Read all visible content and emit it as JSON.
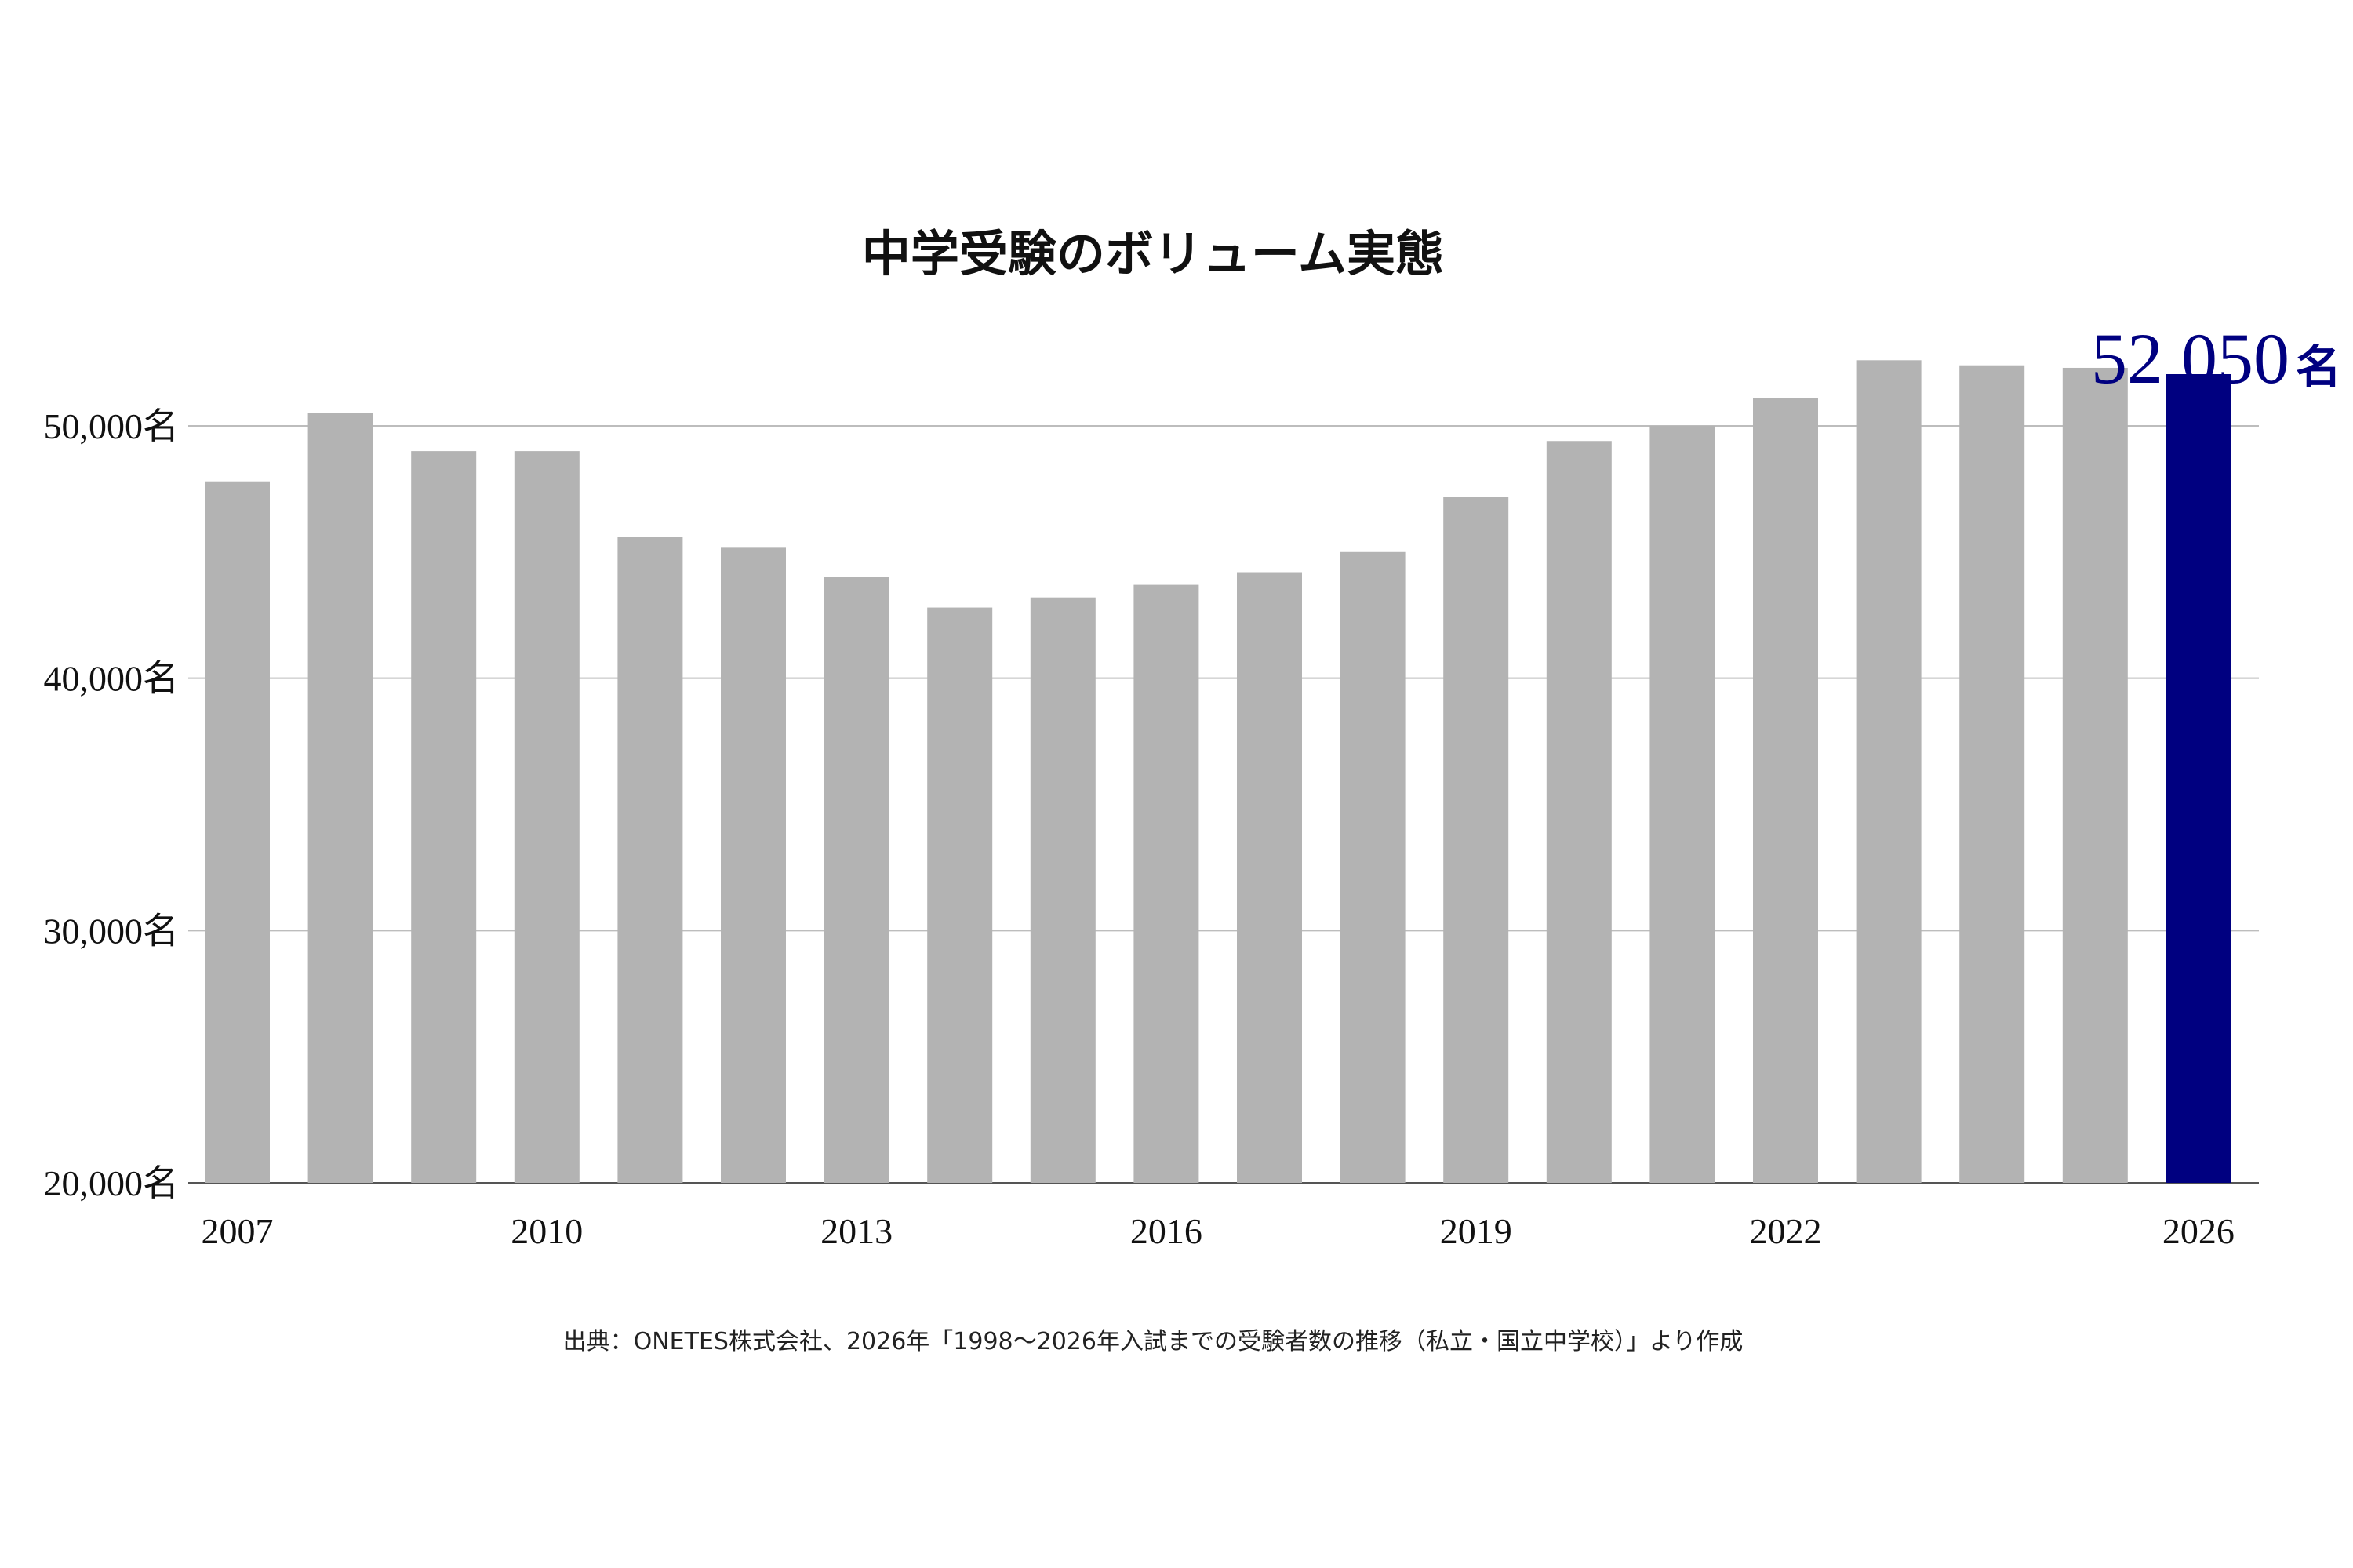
{
  "chart_data": {
    "type": "bar",
    "title": "中学受験のボリューム実態",
    "categories": [
      "2007",
      "2008",
      "2009",
      "2010",
      "2011",
      "2012",
      "2013",
      "2014",
      "2015",
      "2016",
      "2017",
      "2018",
      "2019",
      "2020",
      "2021",
      "2022",
      "2023",
      "2024",
      "2025",
      "2026"
    ],
    "values": [
      47800,
      50500,
      49000,
      49000,
      45600,
      45200,
      44000,
      42800,
      43200,
      43700,
      44200,
      45000,
      47200,
      49400,
      50000,
      51100,
      52600,
      52400,
      52300,
      52050
    ],
    "x_tick_labels": [
      "2007",
      "2010",
      "2013",
      "2016",
      "2019",
      "2022",
      "2026"
    ],
    "y_ticks": [
      20000,
      30000,
      40000,
      50000
    ],
    "y_tick_labels": [
      "20,000",
      "30,000",
      "40,000",
      "50,000"
    ],
    "unit": "名",
    "ylim": [
      20000,
      53200
    ],
    "grid": true,
    "bar_color": "#b3b3b3",
    "highlight_color": "#000080",
    "highlight_index": 19,
    "highlight_value_label": "52,050",
    "highlight_unit_label": "名",
    "source_note": "出典：ONETES株式会社、2026年「1998〜2026年入試までの受験者数の推移（私立・国立中学校）」より作成"
  }
}
